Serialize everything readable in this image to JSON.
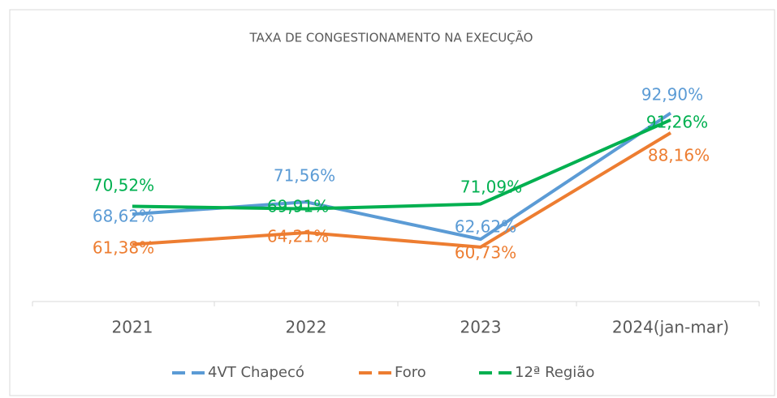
{
  "chart_data": {
    "type": "line",
    "title": "TAXA DE CONGESTIONAMENTO NA EXECUÇÃO",
    "categories": [
      "2021",
      "2022",
      "2023",
      "2024(jan-mar)"
    ],
    "series": [
      {
        "name": "4VT Chapecó",
        "color": "#5b9bd5",
        "values": [
          68.62,
          71.56,
          62.62,
          92.9
        ],
        "value_labels": [
          "68,62%",
          "71,56%",
          "62,62%",
          "92,90%"
        ]
      },
      {
        "name": "Foro",
        "color": "#ed7d31",
        "values": [
          61.38,
          64.21,
          60.73,
          88.16
        ],
        "value_labels": [
          "61,38%",
          "64,21%",
          "60,73%",
          "88,16%"
        ]
      },
      {
        "name": "12ª Região",
        "color": "#00b050",
        "values": [
          70.52,
          69.91,
          71.09,
          91.26
        ],
        "value_labels": [
          "70,52%",
          "69,91%",
          "71,09%",
          "91,26%"
        ]
      }
    ],
    "ylim": [
      50,
      100
    ],
    "legend": "bottom"
  }
}
